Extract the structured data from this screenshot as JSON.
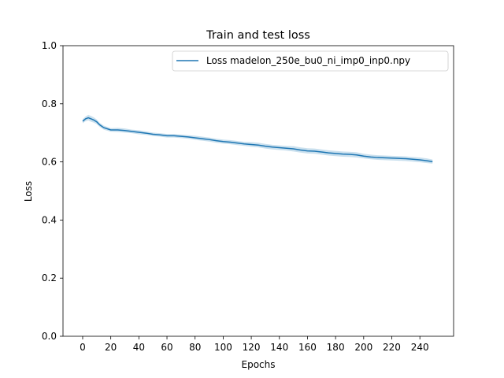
{
  "chart_data": {
    "type": "line",
    "title": "Train and test loss",
    "xlabel": "Epochs",
    "ylabel": "Loss",
    "xlim": [
      -14,
      264
    ],
    "ylim": [
      0.0,
      1.0
    ],
    "x_ticks": [
      "0",
      "20",
      "40",
      "60",
      "80",
      "100",
      "120",
      "140",
      "160",
      "180",
      "200",
      "220",
      "240"
    ],
    "y_ticks": [
      "0.0",
      "0.2",
      "0.4",
      "0.6",
      "0.8",
      "1.0"
    ],
    "grid": false,
    "legend_position": "top-right",
    "series": [
      {
        "name": "Loss madelon_250e_bu0_ni_imp0_inp0.npy",
        "color": "#1f77b4",
        "band_color": "#a6cbe3",
        "x": [
          0,
          2,
          4,
          6,
          8,
          10,
          12,
          15,
          20,
          25,
          30,
          35,
          40,
          45,
          50,
          55,
          60,
          65,
          70,
          75,
          80,
          85,
          90,
          95,
          100,
          105,
          110,
          115,
          120,
          125,
          130,
          135,
          140,
          145,
          150,
          155,
          160,
          165,
          170,
          175,
          180,
          185,
          190,
          195,
          200,
          205,
          210,
          215,
          220,
          225,
          230,
          235,
          240,
          245,
          249
        ],
        "y": [
          0.74,
          0.748,
          0.752,
          0.748,
          0.744,
          0.738,
          0.728,
          0.718,
          0.71,
          0.71,
          0.708,
          0.705,
          0.702,
          0.699,
          0.695,
          0.693,
          0.69,
          0.69,
          0.688,
          0.686,
          0.683,
          0.68,
          0.677,
          0.673,
          0.67,
          0.668,
          0.665,
          0.662,
          0.66,
          0.658,
          0.654,
          0.651,
          0.649,
          0.647,
          0.645,
          0.641,
          0.638,
          0.637,
          0.634,
          0.631,
          0.629,
          0.627,
          0.626,
          0.624,
          0.62,
          0.617,
          0.615,
          0.614,
          0.613,
          0.612,
          0.611,
          0.609,
          0.607,
          0.604,
          0.601
        ],
        "lower": [
          0.733,
          0.74,
          0.743,
          0.738,
          0.735,
          0.73,
          0.721,
          0.711,
          0.704,
          0.703,
          0.701,
          0.699,
          0.695,
          0.693,
          0.689,
          0.687,
          0.684,
          0.684,
          0.682,
          0.68,
          0.676,
          0.673,
          0.67,
          0.666,
          0.663,
          0.661,
          0.658,
          0.655,
          0.652,
          0.65,
          0.646,
          0.643,
          0.641,
          0.639,
          0.636,
          0.632,
          0.629,
          0.628,
          0.625,
          0.622,
          0.62,
          0.618,
          0.617,
          0.615,
          0.612,
          0.609,
          0.607,
          0.606,
          0.605,
          0.604,
          0.603,
          0.601,
          0.599,
          0.596,
          0.594
        ],
        "upper": [
          0.747,
          0.756,
          0.762,
          0.758,
          0.753,
          0.746,
          0.735,
          0.725,
          0.716,
          0.717,
          0.715,
          0.711,
          0.709,
          0.705,
          0.701,
          0.699,
          0.696,
          0.696,
          0.694,
          0.692,
          0.69,
          0.687,
          0.684,
          0.68,
          0.677,
          0.675,
          0.672,
          0.669,
          0.668,
          0.666,
          0.662,
          0.659,
          0.657,
          0.655,
          0.654,
          0.65,
          0.647,
          0.646,
          0.643,
          0.64,
          0.638,
          0.636,
          0.635,
          0.633,
          0.628,
          0.625,
          0.623,
          0.622,
          0.621,
          0.62,
          0.619,
          0.617,
          0.615,
          0.612,
          0.608
        ]
      }
    ]
  }
}
